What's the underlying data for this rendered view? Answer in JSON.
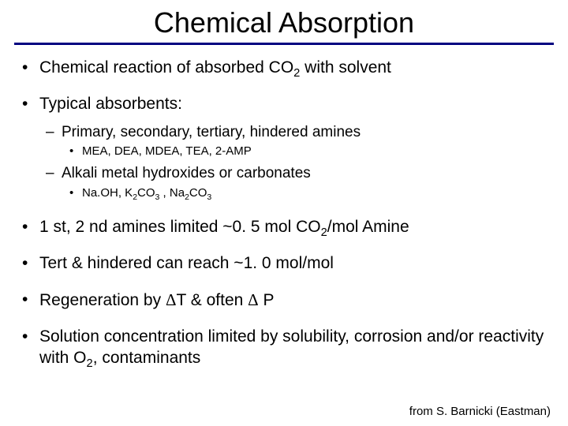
{
  "title": "Chemical Absorption",
  "rule_color": "#000080",
  "background_color": "#ffffff",
  "text_color": "#000000",
  "font_family": "Arial",
  "title_fontsize": 36,
  "lvl1_fontsize": 21,
  "lvl2_fontsize": 19,
  "lvl3_fontsize": 15,
  "bullets": [
    {
      "text_html": "Chemical reaction of absorbed CO<sub>2</sub> with solvent"
    },
    {
      "text_html": "Typical absorbents:",
      "children": [
        {
          "text_html": "Primary, secondary, tertiary, hindered amines",
          "children": [
            {
              "text_html": "MEA, DEA, MDEA, TEA, 2-AMP"
            }
          ]
        },
        {
          "text_html": "Alkali metal hydroxides or carbonates",
          "children": [
            {
              "text_html": "Na.OH, K<sub>2</sub>CO<sub>3</sub> , Na<sub>2</sub>CO<sub>3</sub>"
            }
          ]
        }
      ]
    },
    {
      "text_html": "1 st, 2 nd amines limited ~0. 5 mol CO<sub>2</sub>/mol Amine"
    },
    {
      "text_html": "Tert & hindered can reach ~1. 0 mol/mol"
    },
    {
      "text_html": "Regeneration by <span class=\"delta\">Δ</span>T & often <span class=\"delta\">Δ</span> P"
    },
    {
      "text_html": "Solution concentration limited by solubility, corrosion and/or reactivity with O<sub>2</sub>, contaminants"
    }
  ],
  "attribution": "from S. Barnicki (Eastman)"
}
